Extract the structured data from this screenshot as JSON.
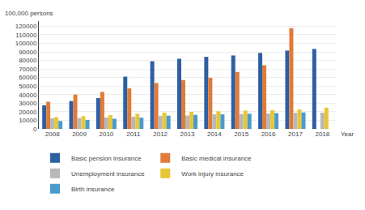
{
  "chart_data": {
    "type": "bar",
    "xlabel": "Year",
    "ylabel": "100,000 persons",
    "categories": [
      "2008",
      "2009",
      "2010",
      "2011",
      "2012",
      "2013",
      "2014",
      "2015",
      "2016",
      "2017",
      "2018"
    ],
    "series": [
      {
        "name": "Basic pension insurance",
        "color": "#2e5fa3",
        "values": [
          27644,
          32548,
          35984,
          61059,
          79098,
          81968,
          84244,
          85833,
          88777,
          91548,
          93468
        ]
      },
      {
        "name": "Basic medical insurance",
        "color": "#e07b39",
        "values": [
          31764,
          40147,
          43263,
          47343,
          53641,
          57073,
          59747,
          66582,
          74392,
          117681,
          0
        ]
      },
      {
        "name": "Unemployment insurance",
        "color": "#b8b8b8",
        "values": [
          12400,
          12700,
          13376,
          14317,
          15225,
          15640,
          17040,
          17326,
          17885,
          18784,
          19000
        ]
      },
      {
        "name": "Work injury insurance",
        "color": "#e8c737",
        "values": [
          13759,
          14823,
          16149,
          17696,
          19010,
          19917,
          20638,
          21432,
          21889,
          22726,
          24869
        ]
      },
      {
        "name": "Birth insurance",
        "color": "#4a9bcb",
        "values": [
          9237,
          10497,
          11906,
          13143,
          15429,
          16430,
          17039,
          17771,
          18443,
          19247,
          0
        ]
      }
    ],
    "ylim": [
      0,
      126000
    ],
    "yticks": [
      0,
      10000,
      20000,
      30000,
      40000,
      50000,
      60000,
      70000,
      80000,
      90000,
      100000,
      110000,
      120000
    ],
    "grid": true,
    "legend": "bottom"
  }
}
